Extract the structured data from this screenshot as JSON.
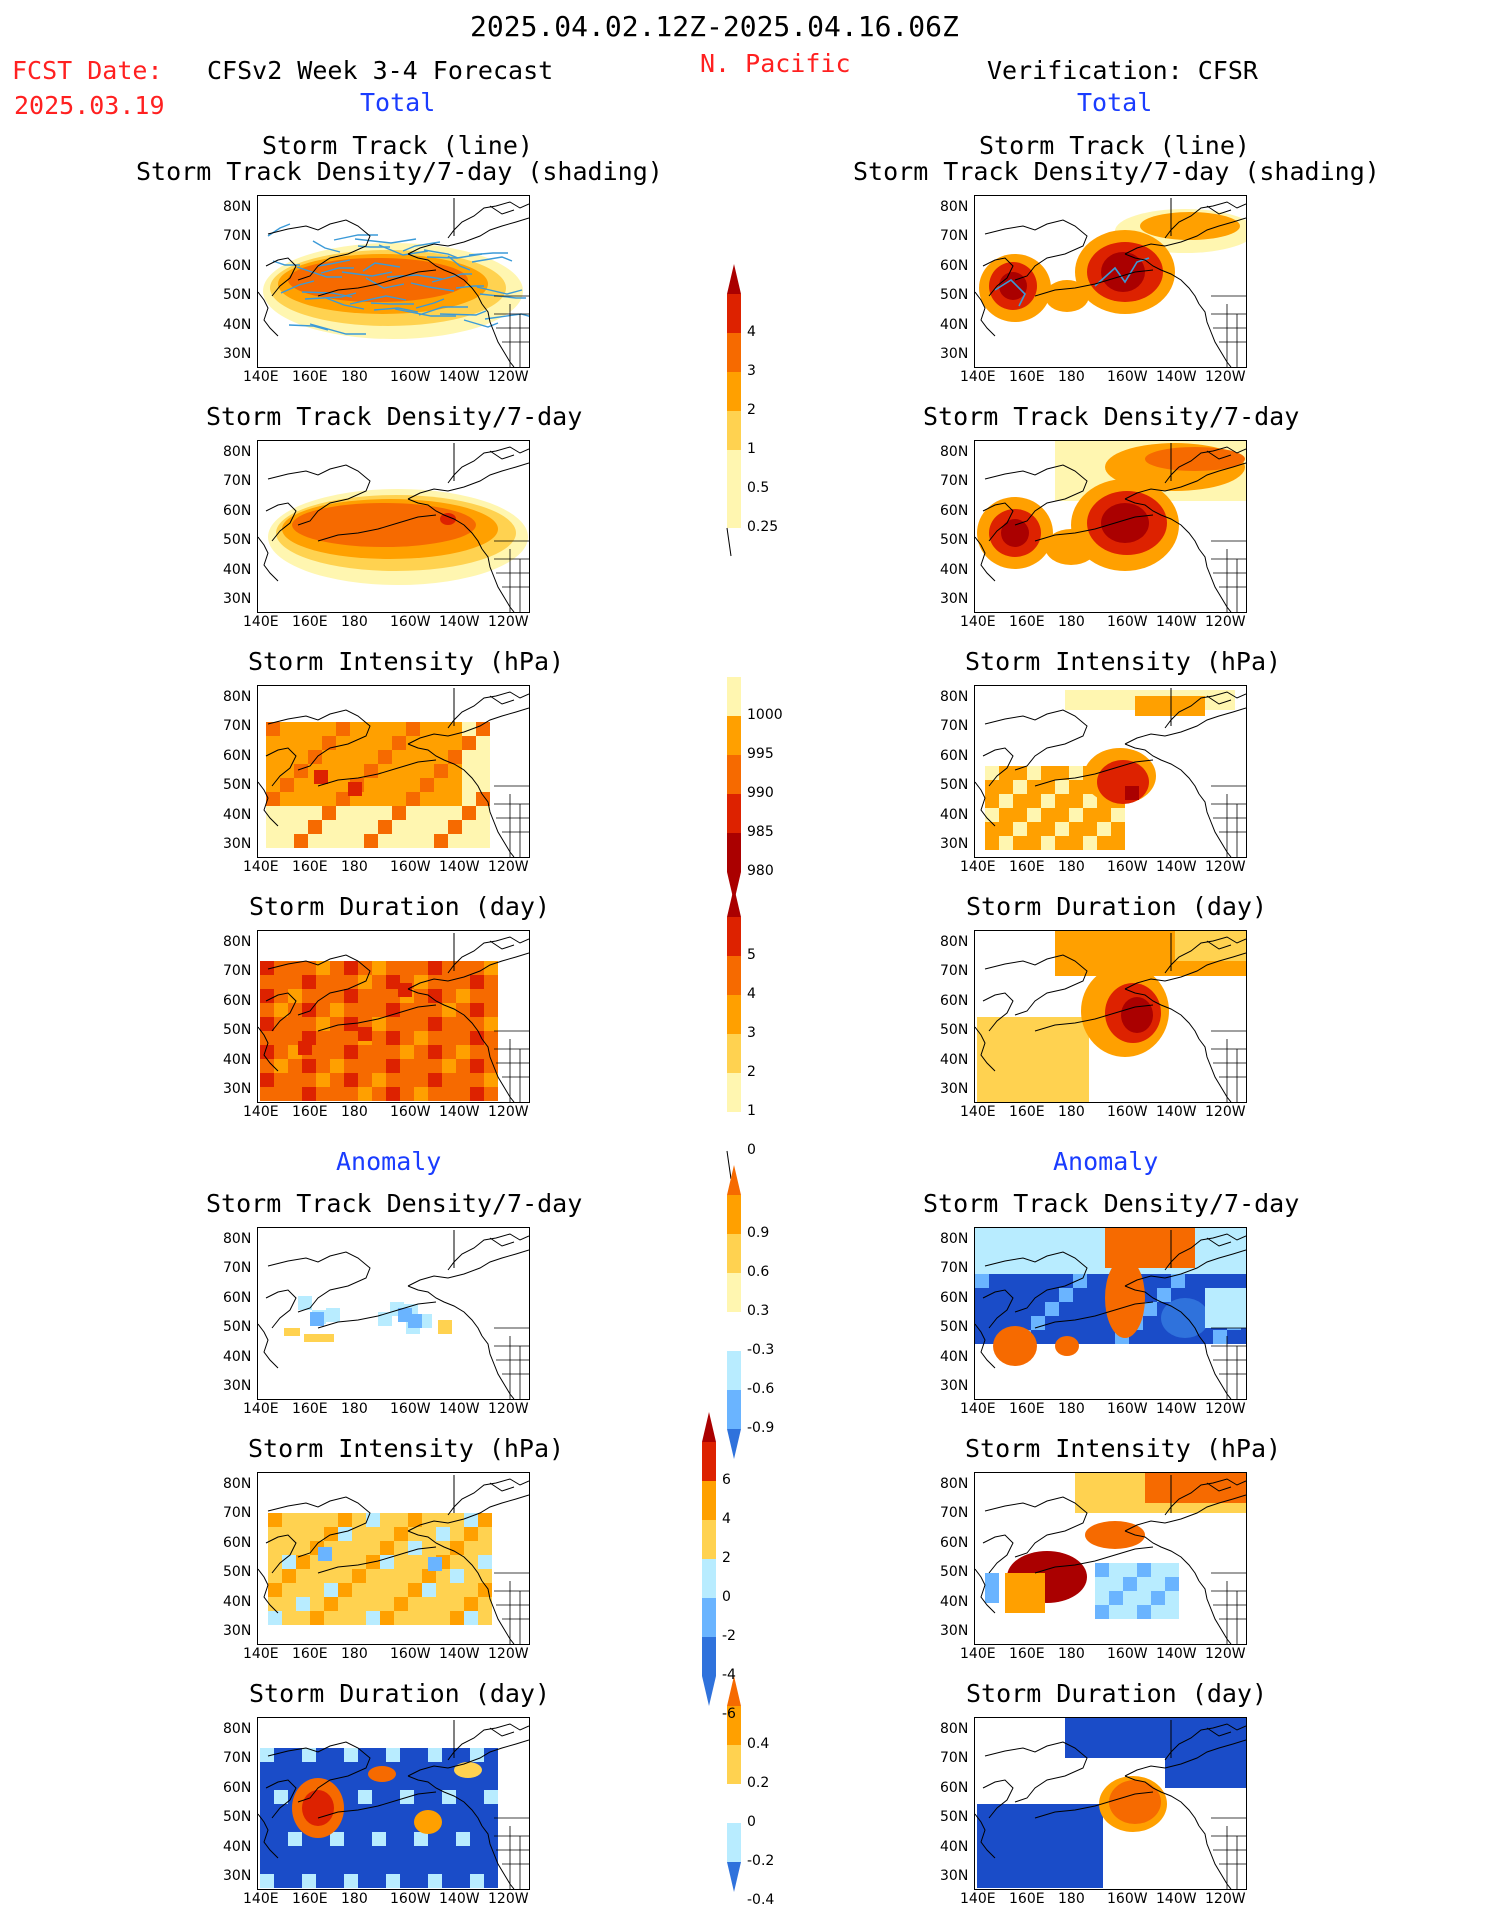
{
  "header": {
    "date_range": "2025.04.02.12Z-2025.04.16.06Z",
    "fcst_label": "FCST Date:",
    "fcst_date": "2025.03.19",
    "forecast_title": "CFSv2 Week 3-4 Forecast",
    "region": "N. Pacific",
    "verification_title": "Verification: CFSR",
    "total_label_left": "Total",
    "total_label_right": "Total",
    "anomaly_label_left": "Anomaly",
    "anomaly_label_right": "Anomaly"
  },
  "panel_titles": {
    "track_line": "Storm Track (line)",
    "track_shading": "Storm Track Density/7-day (shading)",
    "density": "Storm Track Density/7-day",
    "intensity": "Storm Intensity (hPa)",
    "duration": "Storm Duration (day)"
  },
  "axes": {
    "lat_labels": [
      "80N",
      "70N",
      "60N",
      "50N",
      "40N",
      "30N"
    ],
    "lon_labels": [
      "140E",
      "160E",
      "180",
      "160W",
      "140W",
      "120W"
    ]
  },
  "colorbars": {
    "density_total": [
      "4",
      "3",
      "2",
      "1",
      "0.5",
      "0.25"
    ],
    "intensity_total": [
      "1000",
      "995",
      "990",
      "985",
      "980"
    ],
    "duration_total": [
      "5",
      "4",
      "3",
      "2",
      "1",
      "0"
    ],
    "density_anom": [
      "0.9",
      "0.6",
      "0.3",
      "-0.3",
      "-0.6",
      "-0.9"
    ],
    "intensity_anom": [
      "6",
      "4",
      "2",
      "0",
      "-2",
      "-4",
      "-6"
    ],
    "duration_anom": [
      "0.4",
      "0.2",
      "0",
      "-0.2",
      "-0.4"
    ]
  },
  "colors": {
    "title_red": "#ff2020",
    "label_blue": "#1a3cff",
    "c_light_yellow": "#fff6b0",
    "c_yellow": "#ffd250",
    "c_orange": "#ffa000",
    "c_deep_orange": "#f66a00",
    "c_red": "#dd2200",
    "c_dark_red": "#aa0000",
    "c_light_blue": "#b8ecff",
    "c_sky_blue": "#6ab4ff",
    "c_blue": "#2f72dc",
    "c_dark_blue": "#1a4cc8",
    "track_line": "#3b9ad8"
  }
}
